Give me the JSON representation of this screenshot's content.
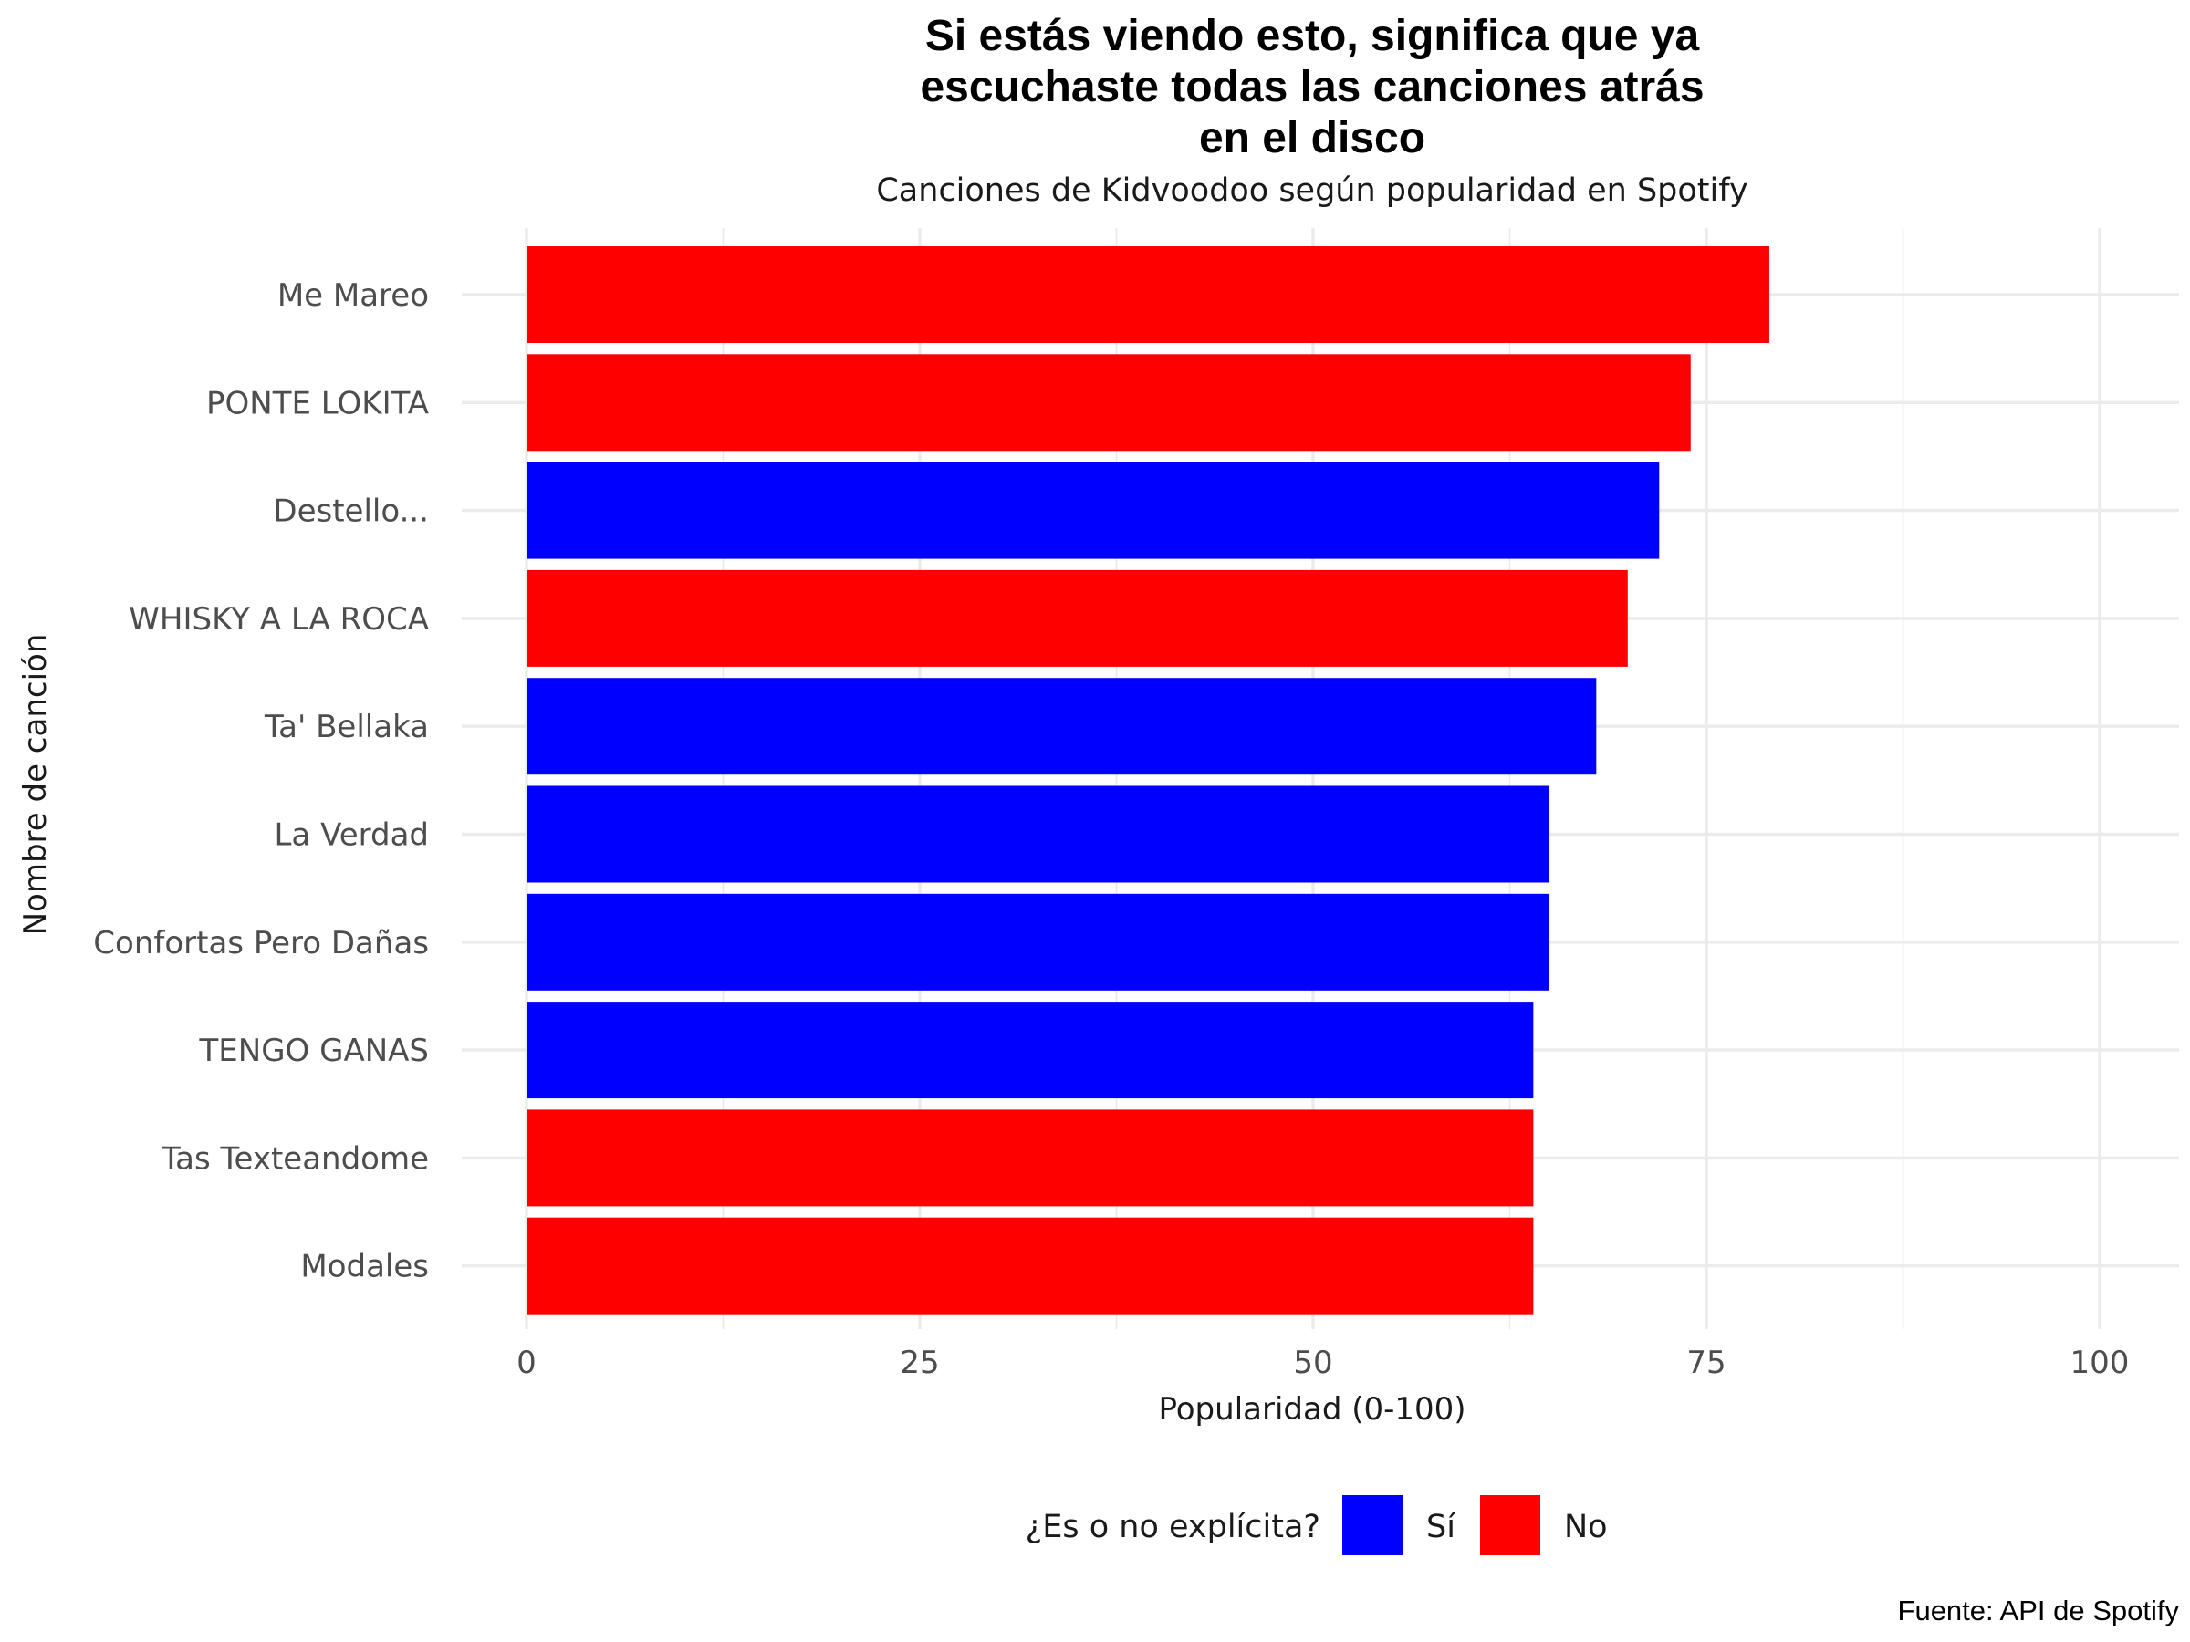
{
  "chart_data": {
    "type": "bar",
    "orientation": "horizontal",
    "title_lines": [
      "Si estás viendo esto, significa que ya",
      "escuchaste todas las canciones atrás",
      "en el disco"
    ],
    "subtitle": "Canciones de Kidvoodoo según popularidad en Spotify",
    "xlabel": "Popularidad (0-100)",
    "ylabel": "Nombre de canción",
    "caption": "Fuente: API de Spotify",
    "xlim": [
      0,
      100
    ],
    "x_ticks": [
      0,
      25,
      50,
      75,
      100
    ],
    "grid": true,
    "legend": {
      "title": "¿Es o no explícita?",
      "position": "bottom",
      "entries": [
        {
          "key": "si",
          "label": "Sí",
          "color": "#0000FF"
        },
        {
          "key": "no",
          "label": "No",
          "color": "#FF0000"
        }
      ]
    },
    "bars": [
      {
        "category": "Me Mareo",
        "value": 79,
        "explicit": "no"
      },
      {
        "category": "PONTE LOKITA",
        "value": 74,
        "explicit": "no"
      },
      {
        "category": "Destello...",
        "value": 72,
        "explicit": "si"
      },
      {
        "category": "WHISKY A LA ROCA",
        "value": 70,
        "explicit": "no"
      },
      {
        "category": "Ta' Bellaka",
        "value": 68,
        "explicit": "si"
      },
      {
        "category": "La Verdad",
        "value": 65,
        "explicit": "si"
      },
      {
        "category": "Confortas Pero Dañas",
        "value": 65,
        "explicit": "si"
      },
      {
        "category": "TENGO GANAS",
        "value": 64,
        "explicit": "si"
      },
      {
        "category": "Tas Texteandome",
        "value": 64,
        "explicit": "no"
      },
      {
        "category": "Modales",
        "value": 64,
        "explicit": "no"
      }
    ]
  }
}
